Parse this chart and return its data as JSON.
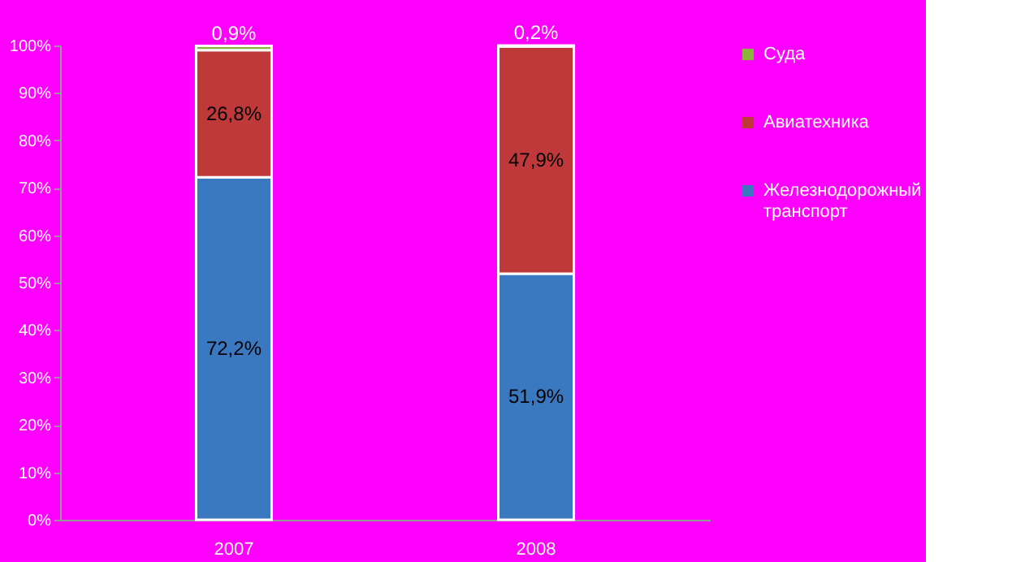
{
  "chart_data": {
    "type": "bar",
    "stacked": true,
    "categories": [
      "2007",
      "2008"
    ],
    "series": [
      {
        "name": "Железнодорожный транспорт",
        "color": "#3a78c0",
        "values": [
          72.2,
          51.9
        ],
        "value_labels": [
          "72,2%",
          "51,9%"
        ]
      },
      {
        "name": "Авиатехника",
        "color": "#c0393a",
        "values": [
          26.8,
          47.9
        ],
        "value_labels": [
          "26,8%",
          "47,9%"
        ]
      },
      {
        "name": "Суда",
        "color": "#8ab43c",
        "values": [
          0.9,
          0.2
        ],
        "value_labels": [
          "0,9%",
          "0,2%"
        ]
      }
    ],
    "ylim": [
      0,
      100
    ],
    "yticks": [
      {
        "value": 0,
        "label": "0%"
      },
      {
        "value": 10,
        "label": "10%"
      },
      {
        "value": 20,
        "label": "20%"
      },
      {
        "value": 30,
        "label": "30%"
      },
      {
        "value": 40,
        "label": "40%"
      },
      {
        "value": 50,
        "label": "50%"
      },
      {
        "value": 60,
        "label": "60%"
      },
      {
        "value": 70,
        "label": "70%"
      },
      {
        "value": 80,
        "label": "80%"
      },
      {
        "value": 90,
        "label": "90%"
      },
      {
        "value": 100,
        "label": "100%"
      }
    ],
    "grid": false,
    "legend": "right"
  }
}
